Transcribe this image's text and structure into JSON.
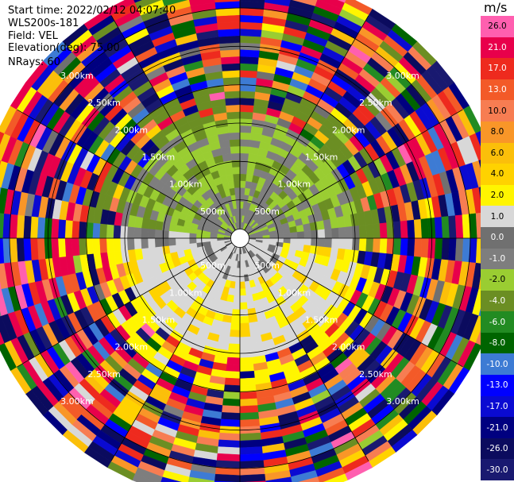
{
  "info": {
    "start_time": "Start time: 2022/02/12 04:07:40",
    "site": "WLS200s-181",
    "field": "Field: VEL",
    "elevation": "Elevation(deg): 75.00",
    "nrays": "NRays: 60"
  },
  "colorbar": {
    "unit": "m/s",
    "levels": [
      {
        "label": "26.0",
        "color": "#ff5faf"
      },
      {
        "label": "21.0",
        "color": "#e8004b"
      },
      {
        "label": "17.0",
        "color": "#ee2a1e"
      },
      {
        "label": "13.0",
        "color": "#f35a28"
      },
      {
        "label": "10.0",
        "color": "#f77d52"
      },
      {
        "label": "8.0",
        "color": "#f99628"
      },
      {
        "label": "6.0",
        "color": "#fbbf0a"
      },
      {
        "label": "4.0",
        "color": "#ffd200"
      },
      {
        "label": "2.0",
        "color": "#fff500"
      },
      {
        "label": "1.0",
        "color": "#d8d8d8"
      },
      {
        "label": "0.0",
        "color": "#707070"
      },
      {
        "label": "-1.0",
        "color": "#7e7e7e"
      },
      {
        "label": "-2.0",
        "color": "#9acd32"
      },
      {
        "label": "-4.0",
        "color": "#6b8e23"
      },
      {
        "label": "-6.0",
        "color": "#228b22"
      },
      {
        "label": "-8.0",
        "color": "#006400"
      },
      {
        "label": "-10.0",
        "color": "#3d7bd4"
      },
      {
        "label": "-13.0",
        "color": "#0000ff"
      },
      {
        "label": "-17.0",
        "color": "#0a0ad2"
      },
      {
        "label": "-21.0",
        "color": "#000080"
      },
      {
        "label": "-26.0",
        "color": "#0b0b5e"
      },
      {
        "label": "-30.0",
        "color": "#191970"
      }
    ]
  },
  "chart_data": {
    "type": "heatmap",
    "projection": "polar (PPI)",
    "field": "VEL",
    "unit": "m/s",
    "elevation_deg": 75.0,
    "n_rays": 60,
    "range_rings_km": [
      0.5,
      1.0,
      1.5,
      2.0,
      2.5,
      3.0
    ],
    "ring_labels": [
      "500m",
      "1.00km",
      "1.50km",
      "2.00km",
      "2.50km",
      "3.00km"
    ],
    "color_scale": [
      -30,
      -26,
      -21,
      -17,
      -13,
      -10,
      -8,
      -6,
      -4,
      -2,
      -1,
      0,
      1,
      2,
      4,
      6,
      8,
      10,
      13,
      17,
      21,
      26
    ],
    "pattern": "inner ranges: near-zero grey and light green (toward radar) to the north, yellow positive (away) to the south; outer ranges: noisy mixed values across full color scale"
  }
}
